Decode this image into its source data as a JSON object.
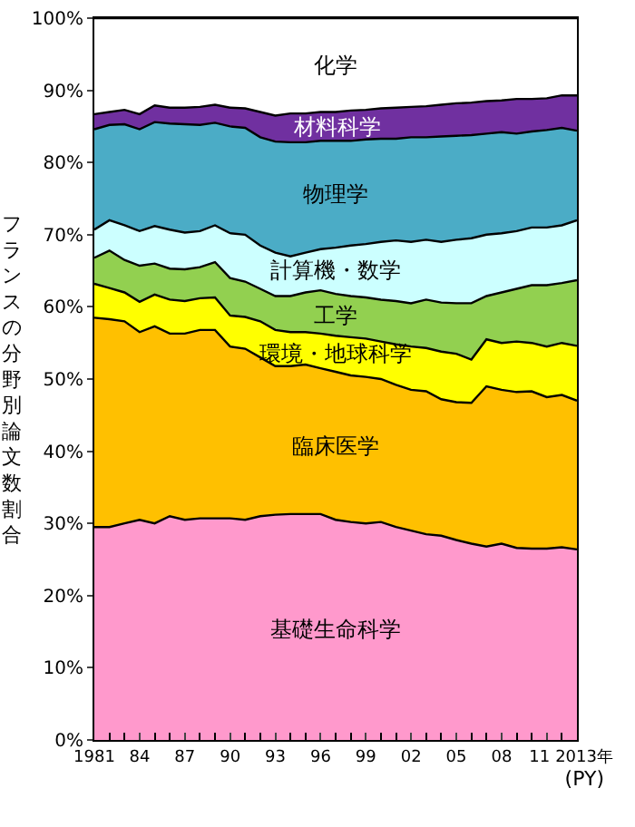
{
  "chart_data": {
    "type": "area",
    "stacked": true,
    "xlabel": "(PY)",
    "ylabel": "フランスの分野別論文数割合",
    "x": [
      1981,
      1982,
      1983,
      1984,
      1985,
      1986,
      1987,
      1988,
      1989,
      1990,
      1991,
      1992,
      1993,
      1994,
      1995,
      1996,
      1997,
      1998,
      1999,
      2000,
      2001,
      2002,
      2003,
      2004,
      2005,
      2006,
      2007,
      2008,
      2009,
      2010,
      2011,
      2012,
      2013
    ],
    "xlim": [
      1981,
      2013
    ],
    "xticks": [
      {
        "value": 1981,
        "label": "1981"
      },
      {
        "value": 1984,
        "label": "84"
      },
      {
        "value": 1987,
        "label": "87"
      },
      {
        "value": 1990,
        "label": "90"
      },
      {
        "value": 1993,
        "label": "93"
      },
      {
        "value": 1996,
        "label": "96"
      },
      {
        "value": 1999,
        "label": "99"
      },
      {
        "value": 2002,
        "label": "02"
      },
      {
        "value": 2005,
        "label": "05"
      },
      {
        "value": 2008,
        "label": "08"
      },
      {
        "value": 2011,
        "label": "11"
      },
      {
        "value": 2013,
        "label": "2013年"
      }
    ],
    "ylim": [
      0,
      100
    ],
    "yticks": [
      {
        "value": 0,
        "label": "0%"
      },
      {
        "value": 10,
        "label": "10%"
      },
      {
        "value": 20,
        "label": "20%"
      },
      {
        "value": 30,
        "label": "30%"
      },
      {
        "value": 40,
        "label": "40%"
      },
      {
        "value": 50,
        "label": "50%"
      },
      {
        "value": 60,
        "label": "60%"
      },
      {
        "value": 70,
        "label": "70%"
      },
      {
        "value": 80,
        "label": "80%"
      },
      {
        "value": 90,
        "label": "90%"
      },
      {
        "value": 100,
        "label": "100%"
      }
    ],
    "legend": false,
    "series": [
      {
        "name": "基礎生命科学",
        "color": "#ff99cc",
        "values": [
          29.5,
          29.5,
          30,
          30.5,
          30,
          31,
          30.5,
          30.7,
          30.7,
          30.7,
          30.5,
          31,
          31.2,
          31.3,
          31.3,
          31.3,
          30.5,
          30.2,
          30,
          30.2,
          29.5,
          29,
          28.5,
          28.3,
          27.7,
          27.2,
          26.8,
          27.2,
          26.6,
          26.5,
          26.5,
          26.7,
          26.4
        ]
      },
      {
        "name": "臨床医学",
        "color": "#ffc000",
        "values": [
          29.0,
          28.8,
          28.0,
          26.0,
          27.3,
          25.3,
          25.8,
          26.1,
          26.1,
          23.8,
          23.7,
          22.0,
          20.6,
          20.5,
          20.7,
          20.2,
          20.5,
          20.3,
          20.3,
          19.8,
          19.7,
          19.5,
          19.8,
          18.9,
          19.1,
          19.5,
          22.2,
          21.3,
          21.6,
          21.8,
          21.0,
          21.1,
          20.6
        ]
      },
      {
        "name": "環境・地球科学",
        "color": "#ffff00",
        "values": [
          4.7,
          4.3,
          4.0,
          4.2,
          4.4,
          4.7,
          4.5,
          4.4,
          4.5,
          4.3,
          4.4,
          5.0,
          5.0,
          4.7,
          4.5,
          4.8,
          5.0,
          5.3,
          5.3,
          5.2,
          5.6,
          6.0,
          6.0,
          6.6,
          6.7,
          6.0,
          6.5,
          6.5,
          7.0,
          6.7,
          7.0,
          7.2,
          7.6
        ]
      },
      {
        "name": "工学",
        "color": "#92d050",
        "values": [
          3.6,
          5.2,
          4.5,
          5.0,
          4.3,
          4.3,
          4.4,
          4.3,
          4.9,
          5.2,
          4.9,
          4.5,
          4.7,
          5.0,
          5.5,
          6.0,
          5.8,
          5.7,
          5.7,
          5.8,
          6.0,
          6.0,
          6.7,
          6.8,
          7.0,
          7.8,
          6.0,
          7.0,
          7.3,
          8.0,
          8.5,
          8.3,
          9.1
        ]
      },
      {
        "name": "計算機・数学",
        "color": "#ccffff",
        "values": [
          3.9,
          4.2,
          4.8,
          4.8,
          5.2,
          5.4,
          5.1,
          5.0,
          5.1,
          6.2,
          6.5,
          6.0,
          6.0,
          5.5,
          5.5,
          5.7,
          6.4,
          7.0,
          7.4,
          8.0,
          8.4,
          8.5,
          8.3,
          8.4,
          8.8,
          9.0,
          8.5,
          8.2,
          8.0,
          8.0,
          8.0,
          8.0,
          8.3
        ]
      },
      {
        "name": "物理学",
        "color": "#4bacc6",
        "values": [
          13.9,
          13.2,
          14.0,
          14.1,
          14.4,
          14.7,
          15.0,
          14.7,
          14.2,
          14.8,
          14.8,
          15.0,
          15.4,
          15.8,
          15.3,
          15.0,
          14.8,
          14.5,
          14.5,
          14.3,
          14.1,
          14.5,
          14.2,
          14.6,
          14.4,
          14.3,
          14.0,
          14.0,
          13.5,
          13.3,
          13.5,
          13.5,
          12.4
        ]
      },
      {
        "name": "材料科学",
        "color": "#7030a0",
        "values": [
          2.1,
          1.8,
          2.0,
          2.1,
          2.3,
          2.2,
          2.3,
          2.5,
          2.5,
          2.6,
          2.7,
          3.5,
          3.6,
          4.0,
          4.0,
          4.0,
          4.0,
          4.2,
          4.1,
          4.2,
          4.3,
          4.2,
          4.3,
          4.4,
          4.5,
          4.5,
          4.5,
          4.4,
          4.8,
          4.5,
          4.4,
          4.5,
          4.9
        ]
      },
      {
        "name": "化学",
        "color": "#ffffff",
        "values": [
          13.3,
          13.0,
          12.7,
          13.3,
          12.1,
          12.4,
          12.4,
          12.3,
          12.0,
          12.4,
          12.5,
          13.0,
          13.5,
          13.2,
          13.2,
          13.0,
          13.0,
          12.8,
          12.7,
          12.5,
          12.4,
          12.3,
          12.2,
          12.0,
          11.8,
          11.7,
          11.5,
          11.4,
          11.2,
          11.2,
          11.1,
          10.7,
          10.7
        ]
      }
    ]
  }
}
